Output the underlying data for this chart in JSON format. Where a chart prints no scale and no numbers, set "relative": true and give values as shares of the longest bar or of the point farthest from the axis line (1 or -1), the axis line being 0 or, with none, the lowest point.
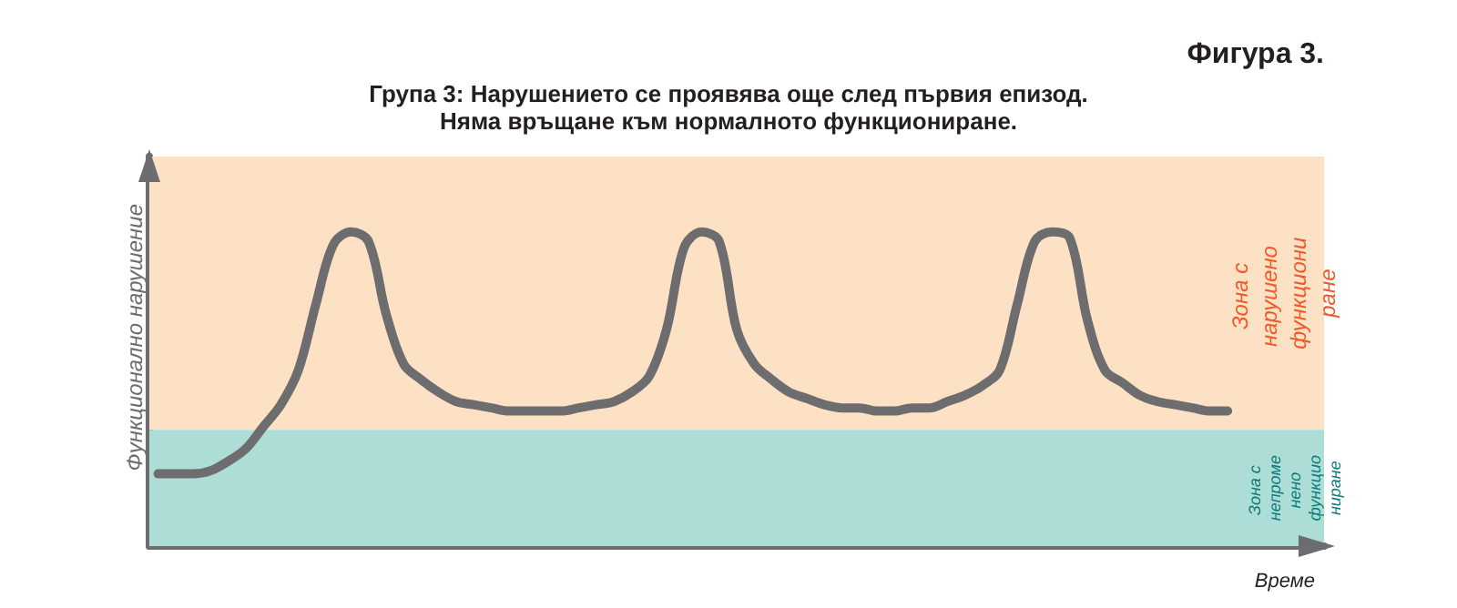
{
  "chart_data": {
    "type": "line",
    "title": "Група 3: Нарушението се проявява още след първия епизод.",
    "subtitle": "Няма връщане към нормалното функциониране.",
    "annotations": [
      "Фигура 3."
    ],
    "xlabel": "Време",
    "ylabel": "Функционално нарушение",
    "relative": true,
    "marker": "none",
    "line_style": "solid",
    "grid": false,
    "categories": [
      null,
      null,
      null,
      null,
      null,
      null,
      null,
      null,
      null,
      null,
      null,
      null,
      null,
      null,
      null,
      null,
      null,
      null,
      null,
      null,
      null,
      null,
      null,
      null,
      null,
      null,
      null,
      null,
      null,
      null,
      null,
      null,
      null,
      null,
      null,
      null,
      null,
      null,
      null,
      null,
      null,
      null,
      null,
      null,
      null,
      null,
      null,
      null,
      null,
      null,
      null,
      null,
      null,
      null,
      null,
      null,
      null,
      null,
      null,
      null,
      null,
      null,
      null,
      null,
      null,
      null,
      null
    ],
    "series": [
      {
        "color": "#6d6d6f",
        "values": [
          0.23,
          0.23,
          0.23,
          0.24,
          0.27,
          0.31,
          0.38,
          0.45,
          0.56,
          0.77,
          0.96,
          1,
          0.97,
          0.74,
          0.58,
          0.53,
          0.49,
          0.46,
          0.45,
          0.44,
          0.43,
          0.43,
          0.43,
          0.43,
          0.44,
          0.45,
          0.46,
          0.49,
          0.54,
          0.69,
          0.95,
          1,
          0.97,
          0.69,
          0.58,
          0.53,
          0.49,
          0.47,
          0.45,
          0.44,
          0.44,
          0.43,
          0.43,
          0.44,
          0.44,
          0.46,
          0.48,
          0.51,
          0.56,
          0.77,
          0.97,
          1,
          0.98,
          0.72,
          0.56,
          0.52,
          0.48,
          0.46,
          0.45,
          0.44,
          0.43,
          0.43,
          null,
          null,
          null,
          null,
          null
        ]
      }
    ],
    "bands": [
      {
        "axis": "y",
        "from": 0.37,
        "to": 1.24,
        "label": "Зона с нарушено функциониране",
        "color": "#fde1c4"
      },
      {
        "axis": "y",
        "from": 0,
        "to": 0.37,
        "label": "Зона с непроменено функциониране",
        "color": "#acddd7"
      }
    ]
  }
}
